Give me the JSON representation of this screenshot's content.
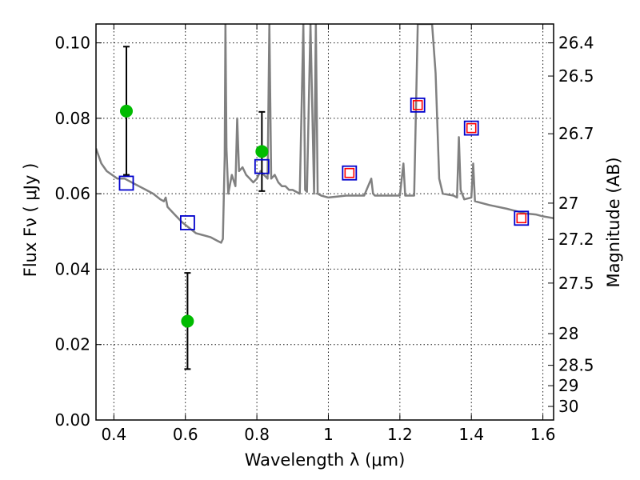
{
  "chart_data": {
    "type": "scatter",
    "xlabel": "Wavelength  λ (μm)",
    "ylabel": "Flux  Fν  ( μJy )",
    "ylabel_right": "Magnitude (AB)",
    "xlim": [
      0.35,
      1.63
    ],
    "ylim": [
      0.0,
      0.105
    ],
    "grid": true,
    "x_ticks": [
      0.4,
      0.6,
      0.8,
      1.0,
      1.2,
      1.4,
      1.6
    ],
    "x_tick_labels": [
      "0.4",
      "0.6",
      "0.8",
      "1",
      "1.2",
      "1.4",
      "1.6"
    ],
    "y_ticks": [
      0.0,
      0.02,
      0.04,
      0.06,
      0.08,
      0.1
    ],
    "y_tick_labels": [
      "0.00",
      "0.02",
      "0.04",
      "0.06",
      "0.08",
      "0.10"
    ],
    "right_axis": {
      "ticks": [
        {
          "label": "26.4",
          "flux": 0.1
        },
        {
          "label": "26.5",
          "flux": 0.0912
        },
        {
          "label": "26.7",
          "flux": 0.0759
        },
        {
          "label": "27",
          "flux": 0.0575
        },
        {
          "label": "27.2",
          "flux": 0.0479
        },
        {
          "label": "27.5",
          "flux": 0.0363
        },
        {
          "label": "28",
          "flux": 0.0229
        },
        {
          "label": "28.5",
          "flux": 0.0145
        },
        {
          "label": "29",
          "flux": 0.0091
        },
        {
          "label": "30",
          "flux": 0.0036
        }
      ]
    },
    "series": [
      {
        "kind": "measured",
        "color": "#00bb00",
        "x": [
          0.435,
          0.606,
          0.814
        ],
        "y": [
          0.0819,
          0.0262,
          0.0712
        ],
        "err_low": [
          0.0169,
          0.0127,
          0.0105
        ],
        "err_high": [
          0.0171,
          0.0128,
          0.0105
        ]
      },
      {
        "kind": "model_photometry",
        "color": "#0000cc",
        "x": [
          0.435,
          0.606,
          0.814,
          1.059,
          1.25,
          1.4,
          1.54
        ],
        "y": [
          0.0628,
          0.0523,
          0.0672,
          0.0655,
          0.0835,
          0.0774,
          0.0535
        ]
      },
      {
        "kind": "model_photometry_inner",
        "color": "#ff0000",
        "x": [
          1.059,
          1.25,
          1.4,
          1.54
        ],
        "y": [
          0.0655,
          0.0835,
          0.0774,
          0.0535
        ]
      },
      {
        "kind": "model_spectrum",
        "color": "#808080",
        "x": [
          0.35,
          0.365,
          0.38,
          0.395,
          0.41,
          0.43,
          0.45,
          0.47,
          0.49,
          0.51,
          0.53,
          0.54,
          0.545,
          0.55,
          0.57,
          0.59,
          0.61,
          0.63,
          0.65,
          0.67,
          0.69,
          0.7,
          0.705,
          0.71,
          0.712,
          0.715,
          0.72,
          0.73,
          0.74,
          0.745,
          0.75,
          0.76,
          0.77,
          0.78,
          0.79,
          0.8,
          0.81,
          0.82,
          0.83,
          0.835,
          0.84,
          0.85,
          0.86,
          0.87,
          0.88,
          0.89,
          0.9,
          0.92,
          0.93,
          0.935,
          0.94,
          0.95,
          0.96,
          0.965,
          0.97,
          0.98,
          1.0,
          1.05,
          1.1,
          1.12,
          1.125,
          1.13,
          1.15,
          1.2,
          1.21,
          1.215,
          1.22,
          1.23,
          1.24,
          1.25,
          1.26,
          1.27,
          1.28,
          1.29,
          1.3,
          1.31,
          1.32,
          1.35,
          1.36,
          1.365,
          1.37,
          1.38,
          1.4,
          1.405,
          1.41,
          1.45,
          1.5,
          1.55,
          1.58,
          1.6,
          1.63
        ],
        "y": [
          0.072,
          0.068,
          0.066,
          0.065,
          0.064,
          0.064,
          0.063,
          0.062,
          0.061,
          0.06,
          0.0585,
          0.058,
          0.059,
          0.0565,
          0.0545,
          0.0525,
          0.051,
          0.0495,
          0.049,
          0.0485,
          0.0475,
          0.047,
          0.048,
          0.07,
          0.105,
          0.072,
          0.06,
          0.065,
          0.062,
          0.08,
          0.066,
          0.067,
          0.065,
          0.064,
          0.063,
          0.064,
          0.066,
          0.065,
          0.064,
          0.105,
          0.064,
          0.065,
          0.063,
          0.062,
          0.062,
          0.061,
          0.061,
          0.06,
          0.105,
          0.061,
          0.0605,
          0.105,
          0.06,
          0.105,
          0.06,
          0.0595,
          0.059,
          0.0595,
          0.0595,
          0.064,
          0.06,
          0.0595,
          0.0595,
          0.0595,
          0.068,
          0.0595,
          0.0595,
          0.0595,
          0.0595,
          0.105,
          0.105,
          0.105,
          0.105,
          0.105,
          0.092,
          0.064,
          0.06,
          0.0595,
          0.059,
          0.075,
          0.061,
          0.0585,
          0.059,
          0.068,
          0.058,
          0.057,
          0.056,
          0.0548,
          0.0545,
          0.054,
          0.0535
        ]
      }
    ]
  }
}
